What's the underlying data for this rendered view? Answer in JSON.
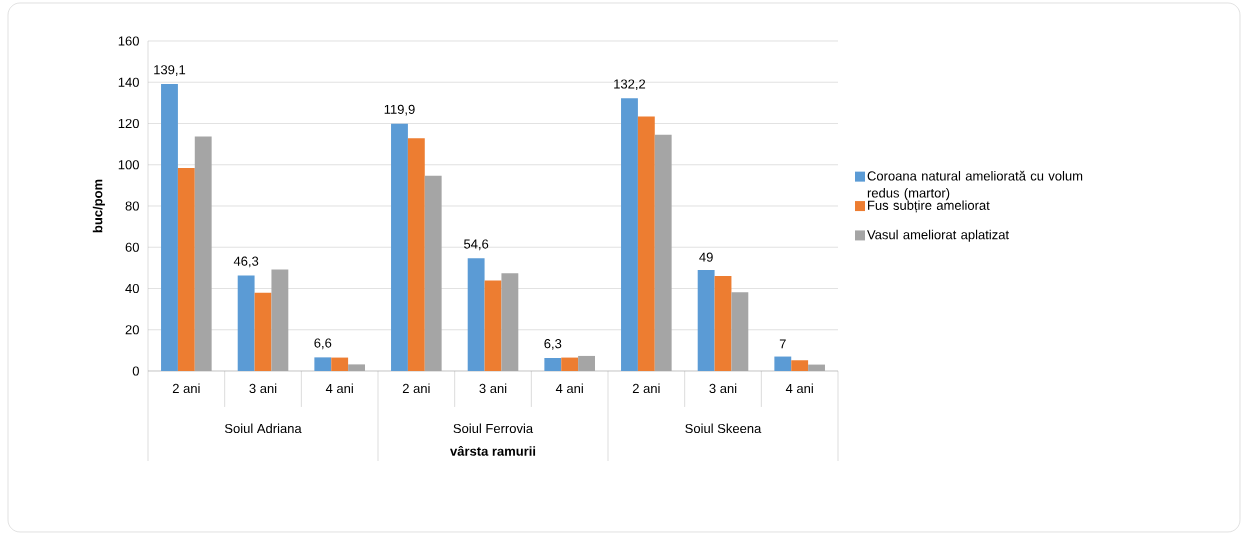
{
  "chart_data": {
    "type": "bar",
    "ylabel": "buc/pom",
    "xlabel": "vârsta ramurii",
    "categories": [
      "2 ani",
      "3 ani",
      "4 ani",
      "2 ani",
      "3 ani",
      "4 ani",
      "2 ani",
      "3 ani",
      "4 ani"
    ],
    "series": [
      {
        "name": "Coroana natural ameliorată cu volum redus (martor)",
        "color": "#5b9bd5",
        "values": [
          139.1,
          46.3,
          6.6,
          119.9,
          54.6,
          6.3,
          132.2,
          49,
          7
        ],
        "value_labels": [
          "139,1",
          "46,3",
          "6,6",
          "119,9",
          "54,6",
          "6,3",
          "132,2",
          "49",
          "7"
        ]
      },
      {
        "name": "Fus subțire ameliorat",
        "color": "#ed7d31",
        "values": [
          98.4,
          37.9,
          6.5,
          112.9,
          43.9,
          6.5,
          123.4,
          46,
          5.2
        ]
      },
      {
        "name": "Vasul ameliorat aplatizat",
        "color": "#a5a5a5",
        "values": [
          113.7,
          49.2,
          3.2,
          94.7,
          47.4,
          7.3,
          114.5,
          38.2,
          3.1
        ]
      }
    ],
    "annotations": [
      "Soiul Adriana",
      "Soiul Ferrovia",
      "Soiul Skeena"
    ],
    "ylim": [
      0,
      160
    ],
    "yticks": [
      0,
      20,
      40,
      60,
      80,
      100,
      120,
      140,
      160
    ],
    "grid": "y",
    "legend": "right"
  }
}
